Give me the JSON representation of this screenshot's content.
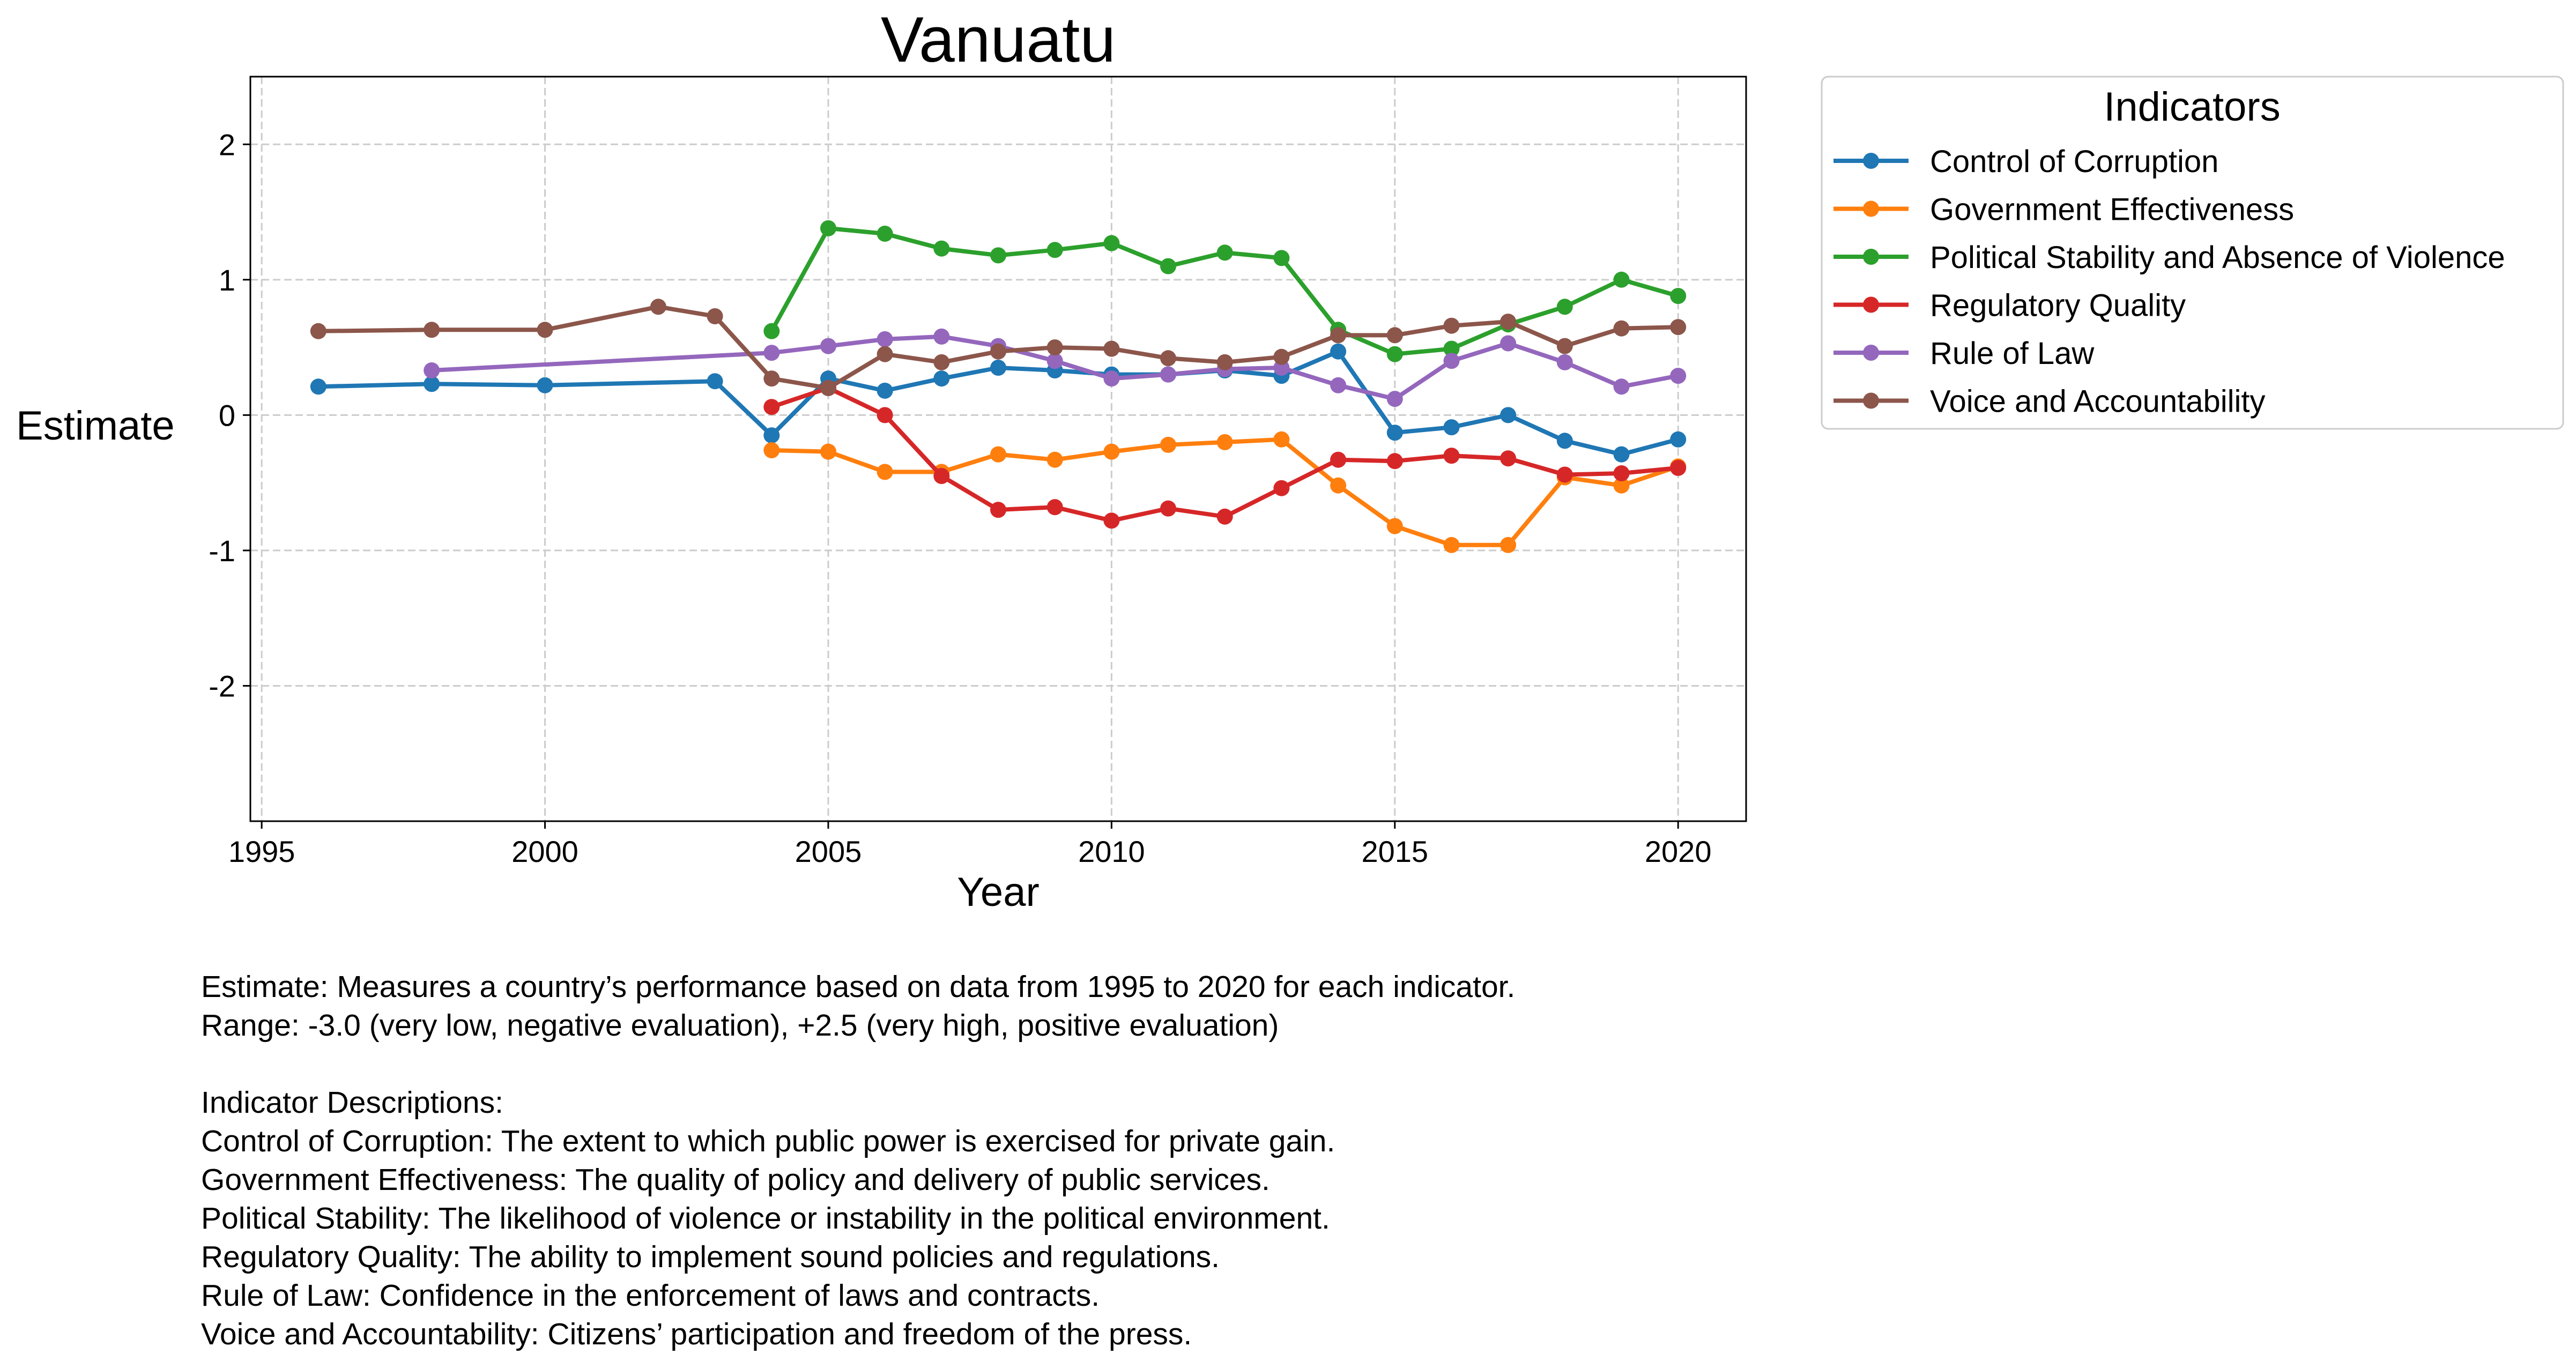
{
  "chart_data": {
    "type": "line",
    "title": "Vanuatu",
    "xlabel": "Year",
    "ylabel": "Estimate",
    "xlim": [
      1994.8,
      2021.2
    ],
    "ylim": [
      -3.0,
      2.5
    ],
    "xticks": [
      1995,
      2000,
      2005,
      2010,
      2015,
      2020
    ],
    "yticks": [
      -2,
      -1,
      0,
      1,
      2
    ],
    "grid": true,
    "legend": {
      "title": "Indicators",
      "placement": "outside-top-right"
    },
    "series": [
      {
        "name": "Control of Corruption",
        "color": "#1f77b4",
        "x": [
          1996,
          1998,
          2000,
          2003,
          2004,
          2005,
          2006,
          2007,
          2008,
          2009,
          2010,
          2011,
          2012,
          2013,
          2014,
          2015,
          2016,
          2017,
          2018,
          2019,
          2020
        ],
        "y": [
          0.21,
          0.23,
          0.22,
          0.25,
          -0.15,
          0.27,
          0.18,
          0.27,
          0.35,
          0.33,
          0.3,
          0.3,
          0.33,
          0.29,
          0.47,
          -0.13,
          -0.09,
          0.0,
          -0.19,
          -0.29,
          -0.18
        ]
      },
      {
        "name": "Government Effectiveness",
        "color": "#ff7f0e",
        "x": [
          2004,
          2005,
          2006,
          2007,
          2008,
          2009,
          2010,
          2011,
          2012,
          2013,
          2014,
          2015,
          2016,
          2017,
          2018,
          2019,
          2020
        ],
        "y": [
          -0.26,
          -0.27,
          -0.42,
          -0.42,
          -0.29,
          -0.33,
          -0.27,
          -0.22,
          -0.2,
          -0.18,
          -0.52,
          -0.82,
          -0.96,
          -0.96,
          -0.46,
          -0.52,
          -0.38
        ]
      },
      {
        "name": "Political Stability and Absence of Violence",
        "color": "#2ca02c",
        "x": [
          2004,
          2005,
          2006,
          2007,
          2008,
          2009,
          2010,
          2011,
          2012,
          2013,
          2014,
          2015,
          2016,
          2017,
          2018,
          2019,
          2020
        ],
        "y": [
          0.62,
          1.38,
          1.34,
          1.23,
          1.18,
          1.22,
          1.27,
          1.1,
          1.2,
          1.16,
          0.63,
          0.45,
          0.49,
          0.67,
          0.8,
          1.0,
          0.88
        ]
      },
      {
        "name": "Regulatory Quality",
        "color": "#d62728",
        "x": [
          2004,
          2005,
          2006,
          2007,
          2008,
          2009,
          2010,
          2011,
          2012,
          2013,
          2014,
          2015,
          2016,
          2017,
          2018,
          2019,
          2020
        ],
        "y": [
          0.06,
          0.2,
          0.0,
          -0.45,
          -0.7,
          -0.68,
          -0.78,
          -0.69,
          -0.75,
          -0.54,
          -0.33,
          -0.34,
          -0.3,
          -0.32,
          -0.44,
          -0.43,
          -0.39
        ]
      },
      {
        "name": "Rule of Law",
        "color": "#9467bd",
        "x": [
          1998,
          2004,
          2005,
          2006,
          2007,
          2008,
          2009,
          2010,
          2011,
          2012,
          2013,
          2014,
          2015,
          2016,
          2017,
          2018,
          2019,
          2020
        ],
        "y": [
          0.33,
          0.46,
          0.51,
          0.56,
          0.58,
          0.51,
          0.4,
          0.27,
          0.3,
          0.34,
          0.35,
          0.22,
          0.12,
          0.4,
          0.53,
          0.39,
          0.21,
          0.29
        ]
      },
      {
        "name": "Voice and Accountability",
        "color": "#8c564b",
        "x": [
          1996,
          1998,
          2000,
          2002,
          2003,
          2004,
          2005,
          2006,
          2007,
          2008,
          2009,
          2010,
          2011,
          2012,
          2013,
          2014,
          2015,
          2016,
          2017,
          2018,
          2019,
          2020
        ],
        "y": [
          0.62,
          0.63,
          0.63,
          0.8,
          0.73,
          0.27,
          0.2,
          0.45,
          0.39,
          0.47,
          0.5,
          0.49,
          0.42,
          0.39,
          0.43,
          0.59,
          0.59,
          0.66,
          0.69,
          0.51,
          0.64,
          0.65
        ]
      }
    ]
  },
  "notes": {
    "line1": "Estimate: Measures a country’s performance based on data from 1995 to 2020 for each indicator.",
    "line2": "Range: -3.0 (very low, negative evaluation), +2.5 (very high, positive evaluation)",
    "heading": "Indicator Descriptions:",
    "desc1": "Control of Corruption: The extent to which public power is exercised for private gain.",
    "desc2": "Government Effectiveness: The quality of policy and delivery of public services.",
    "desc3": "Political Stability: The likelihood of violence or instability in the political environment.",
    "desc4": "Regulatory Quality: The ability to implement sound policies and regulations.",
    "desc5": "Rule of Law: Confidence in the enforcement of laws and contracts.",
    "desc6": "Voice and Accountability: Citizens’ participation and freedom of the press."
  }
}
